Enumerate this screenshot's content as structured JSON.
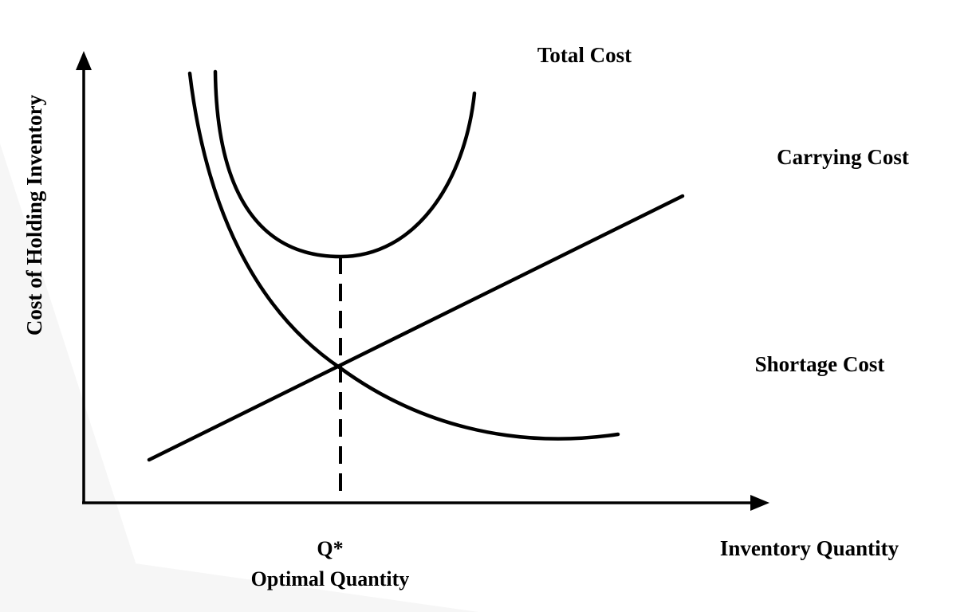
{
  "labels": {
    "y_axis": "Cost of Holding Inventory",
    "x_axis": "Inventory Quantity",
    "optimum_symbol": "Q*",
    "optimum_name": "Optimal Quantity",
    "total_cost": "Total Cost",
    "carrying_cost": "Carrying Cost",
    "shortage_cost": "Shortage Cost"
  },
  "colors": {
    "line": "#000000",
    "background": "#ffffff"
  }
}
